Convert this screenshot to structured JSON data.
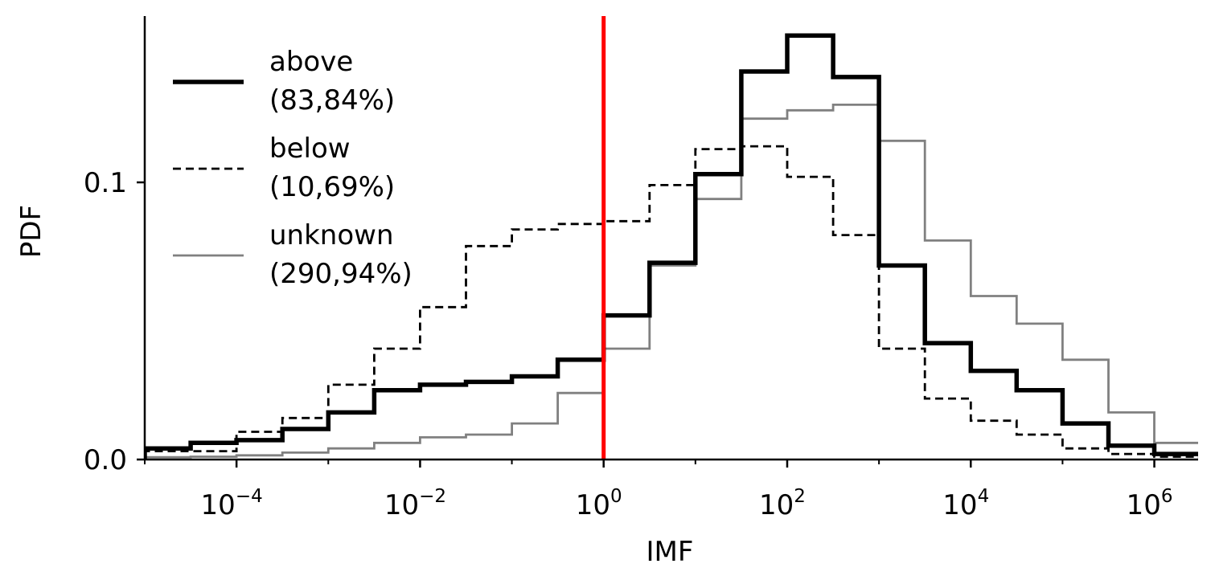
{
  "chart_data": {
    "type": "line",
    "step": "histogram",
    "xscale": "log",
    "xlabel": "IMF",
    "ylabel": "PDF",
    "xlim": [
      1e-05,
      3000000.0
    ],
    "ylim": [
      0,
      0.16
    ],
    "x_ticks": [
      {
        "base": "10",
        "exp": "−4",
        "value": 0.0001
      },
      {
        "base": "10",
        "exp": "−2",
        "value": 0.01
      },
      {
        "base": "10",
        "exp": "0",
        "value": 1
      },
      {
        "base": "10",
        "exp": "2",
        "value": 100
      },
      {
        "base": "10",
        "exp": "4",
        "value": 10000
      },
      {
        "base": "10",
        "exp": "6",
        "value": 1000000
      }
    ],
    "y_ticks": [
      {
        "label": "0.0",
        "value": 0
      },
      {
        "label": "0.1",
        "value": 0.1
      }
    ],
    "bin_edges_log10": [
      -5.5,
      -5,
      -4.5,
      -4,
      -3.5,
      -3,
      -2.5,
      -2,
      -1.5,
      -1,
      -0.5,
      0,
      0.5,
      1,
      1.5,
      2,
      2.5,
      3,
      3.5,
      4,
      4.5,
      5,
      5.5,
      6,
      6.5
    ],
    "series": [
      {
        "name": "above",
        "legend_label_1": "above",
        "legend_label_2": "(83,84%)",
        "style": "solid-thick",
        "color": "#000000",
        "values": [
          0.001,
          0.004,
          0.006,
          0.007,
          0.011,
          0.017,
          0.025,
          0.027,
          0.028,
          0.03,
          0.036,
          0.052,
          0.071,
          0.103,
          0.14,
          0.153,
          0.138,
          0.07,
          0.042,
          0.032,
          0.025,
          0.013,
          0.005,
          0.002
        ]
      },
      {
        "name": "below",
        "legend_label_1": "below",
        "legend_label_2": "(10,69%)",
        "style": "dashed",
        "color": "#000000",
        "values": [
          0.003,
          0.003,
          0.003,
          0.01,
          0.015,
          0.027,
          0.04,
          0.055,
          0.077,
          0.083,
          0.085,
          0.086,
          0.099,
          0.112,
          0.113,
          0.102,
          0.081,
          0.04,
          0.022,
          0.014,
          0.009,
          0.004,
          0.002,
          0.001
        ]
      },
      {
        "name": "unknown",
        "legend_label_1": "unknown",
        "legend_label_2": "(290,94%)",
        "style": "solid-thin",
        "color": "#808080",
        "values": [
          0.0003,
          0.0008,
          0.001,
          0.0015,
          0.0025,
          0.004,
          0.006,
          0.008,
          0.009,
          0.013,
          0.024,
          0.04,
          0.07,
          0.094,
          0.123,
          0.126,
          0.128,
          0.115,
          0.079,
          0.059,
          0.049,
          0.036,
          0.017,
          0.006
        ]
      }
    ],
    "vline": {
      "x": 1,
      "color": "#ff0000"
    },
    "legend_placement": "top-left",
    "grid": false
  }
}
